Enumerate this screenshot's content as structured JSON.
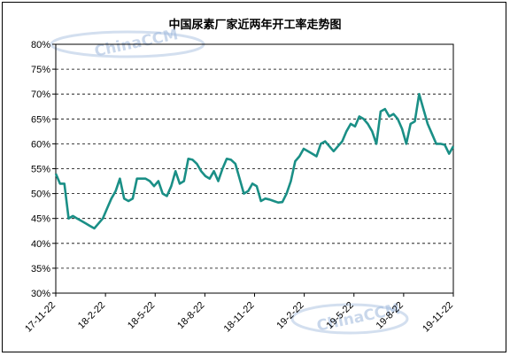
{
  "chart_data": {
    "type": "line",
    "title": "中国尿素厂家近两年开工率走势图",
    "ylim": [
      0.3,
      0.8
    ],
    "yticks": [
      "30%",
      "35%",
      "40%",
      "45%",
      "50%",
      "55%",
      "60%",
      "65%",
      "70%",
      "75%",
      "80%"
    ],
    "xticks": [
      "17-11-22",
      "18-2-22",
      "18-5-22",
      "18-8-22",
      "18-11-22",
      "19-2-22",
      "19-5-22",
      "19-8-22",
      "19-11-22"
    ],
    "grid": true,
    "line_color": "#1a8f86",
    "series": [
      {
        "values": [
          0.54,
          0.52,
          0.52,
          0.45,
          0.455,
          0.45,
          0.445,
          0.44,
          0.435,
          0.43,
          0.44,
          0.45,
          0.47,
          0.49,
          0.505,
          0.53,
          0.49,
          0.485,
          0.49,
          0.53,
          0.53,
          0.53,
          0.525,
          0.515,
          0.525,
          0.5,
          0.495,
          0.515,
          0.545,
          0.52,
          0.525,
          0.57,
          0.568,
          0.56,
          0.545,
          0.535,
          0.53,
          0.545,
          0.525,
          0.55,
          0.57,
          0.568,
          0.56,
          0.53,
          0.5,
          0.505,
          0.52,
          0.515,
          0.485,
          0.49,
          0.488,
          0.485,
          0.482,
          0.483,
          0.5,
          0.525,
          0.565,
          0.575,
          0.59,
          0.585,
          0.58,
          0.575,
          0.6,
          0.605,
          0.595,
          0.585,
          0.595,
          0.605,
          0.625,
          0.64,
          0.635,
          0.655,
          0.65,
          0.64,
          0.625,
          0.6,
          0.665,
          0.67,
          0.655,
          0.66,
          0.65,
          0.63,
          0.6,
          0.64,
          0.645,
          0.7,
          0.67,
          0.64,
          0.62,
          0.6,
          0.6,
          0.598,
          0.58,
          0.595
        ]
      }
    ]
  },
  "watermark": {
    "text": "ChinaCCM",
    "color": "#9db8dc"
  }
}
